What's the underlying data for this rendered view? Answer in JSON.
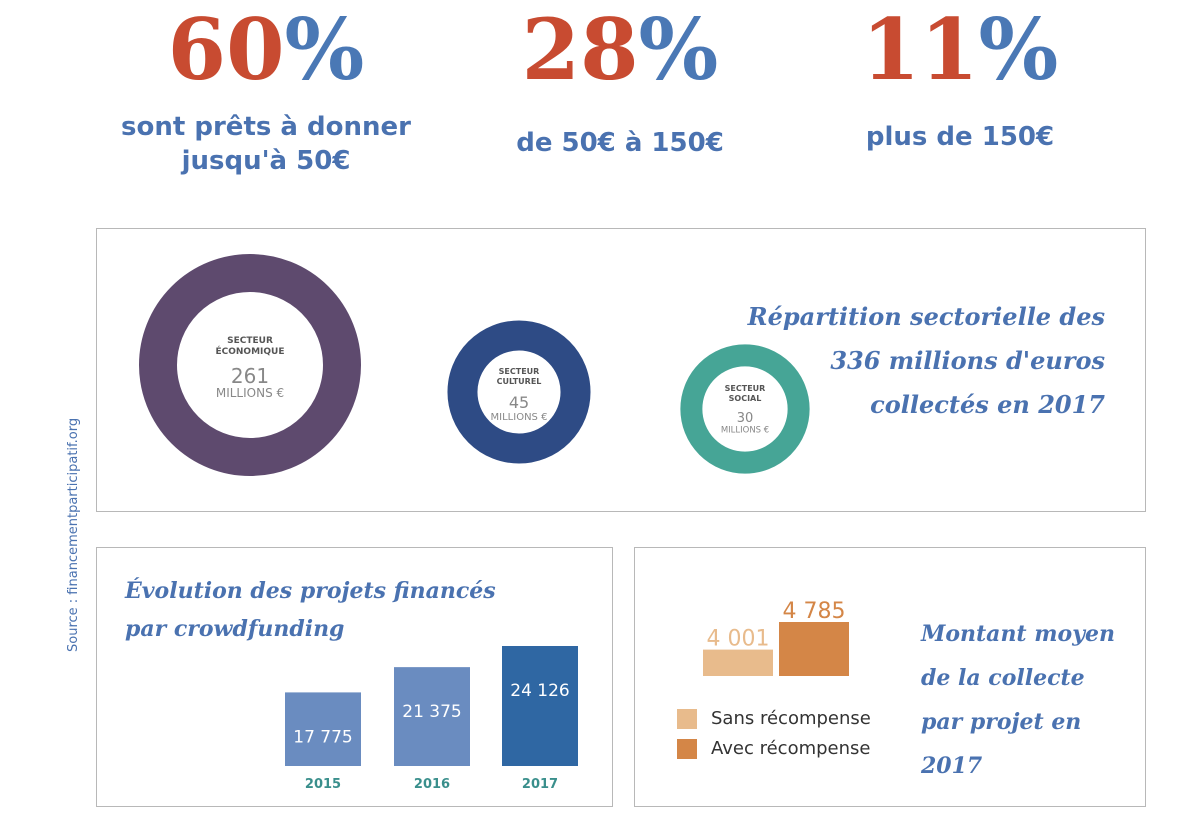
{
  "stats": [
    {
      "number": "60",
      "percent": "%",
      "caption": [
        "sont prêts à donner",
        "jusqu'à 50€"
      ]
    },
    {
      "number": "28",
      "percent": "%",
      "caption": [
        "de 50€ à 150€"
      ]
    },
    {
      "number": "11",
      "percent": "%",
      "caption": [
        "plus de 150€"
      ]
    }
  ],
  "source": "Source : financementparticipatif.org",
  "colors": {
    "stat_number": "#c84b31",
    "stat_percent": "#4a78b5",
    "title_blue": "#4a72b0",
    "economique": "#5e4a6e",
    "culturel": "#2e4b85",
    "social": "#46a596",
    "bar_light": "#6a8cc0",
    "bar_dark": "#2f67a3",
    "sans_recompense": "#e8bb8c",
    "avec_recompense": "#d48647"
  },
  "chart_data": [
    {
      "type": "pie",
      "title": [
        "Répartition sectorielle des",
        "336 millions d'euros",
        "collectés en 2017"
      ],
      "unit": "MILLIONS €",
      "slices": [
        {
          "label": [
            "SECTEUR",
            "ÉCONOMIQUE"
          ],
          "value": 261,
          "value_label": "261"
        },
        {
          "label": [
            "SECTEUR",
            "CULTUREL"
          ],
          "value": 45,
          "value_label": "45"
        },
        {
          "label": [
            "SECTEUR",
            "SOCIAL"
          ],
          "value": 30,
          "value_label": "30"
        }
      ]
    },
    {
      "type": "bar",
      "title": [
        "Évolution des projets financés",
        "par crowdfunding"
      ],
      "categories": [
        "2015",
        "2016",
        "2017"
      ],
      "values": [
        17775,
        21375,
        24126
      ],
      "value_labels": [
        "17 775",
        "21 375",
        "24 126"
      ],
      "ylim": [
        0,
        24126
      ]
    },
    {
      "type": "bar",
      "title": [
        "Montant moyen",
        "de la collecte",
        "par projet en 2017"
      ],
      "categories": [
        "Sans récompense",
        "Avec récompense"
      ],
      "values": [
        4001,
        4785
      ],
      "value_labels": [
        "4 001",
        "4 785"
      ],
      "legend": [
        "Sans récompense",
        "Avec récompense"
      ],
      "legend_position": "bottom-left"
    }
  ]
}
